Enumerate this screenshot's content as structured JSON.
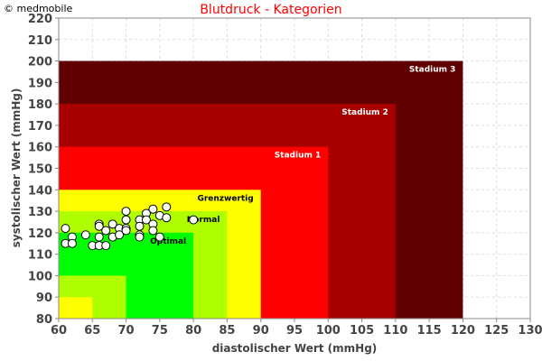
{
  "copyright": "© medmobile",
  "chart_data": {
    "type": "scatter",
    "title": "Blutdruck - Kategorien",
    "xlabel": "diastolischer Wert (mmHg)",
    "ylabel": "systolischer Wert (mmHg)",
    "xlim": [
      60,
      130
    ],
    "ylim": [
      80,
      220
    ],
    "xticks": [
      60,
      65,
      70,
      75,
      80,
      85,
      90,
      95,
      100,
      105,
      110,
      115,
      120,
      125,
      130
    ],
    "yticks": [
      80,
      90,
      100,
      110,
      120,
      130,
      140,
      150,
      160,
      170,
      180,
      190,
      200,
      210,
      220
    ],
    "grid": true,
    "zones": [
      {
        "label": "Stadium 3",
        "xmax": 120,
        "ymax": 200,
        "color": "#600000",
        "text_color": "#ffffff"
      },
      {
        "label": "Stadium 2",
        "xmax": 110,
        "ymax": 180,
        "color": "#a80000",
        "text_color": "#ffffff"
      },
      {
        "label": "Stadium 1",
        "xmax": 100,
        "ymax": 160,
        "color": "#ff0000",
        "text_color": "#ffffff"
      },
      {
        "label": "Grenzwertig",
        "xmax": 90,
        "ymax": 140,
        "color": "#ffff00",
        "text_color": "#000000"
      },
      {
        "label": "Normal",
        "xmax": 85,
        "ymax": 130,
        "color": "#b0ff00",
        "text_color": "#000000"
      },
      {
        "label": "Optimal",
        "xmax": 80,
        "ymax": 120,
        "color": "#00ff00",
        "text_color": "#000000"
      },
      {
        "label": "",
        "xmax": 70,
        "ymax": 100,
        "color": "#b0ff00",
        "text_color": "#000000"
      },
      {
        "label": "",
        "xmax": 65,
        "ymax": 90,
        "color": "#ffff00",
        "text_color": "#000000"
      }
    ],
    "points": [
      [
        61,
        122
      ],
      [
        62,
        118
      ],
      [
        61,
        115
      ],
      [
        62,
        115
      ],
      [
        64,
        119
      ],
      [
        66,
        124
      ],
      [
        66,
        123
      ],
      [
        66,
        118
      ],
      [
        65,
        114
      ],
      [
        66,
        114
      ],
      [
        67,
        114
      ],
      [
        67,
        121
      ],
      [
        68,
        124
      ],
      [
        68,
        118
      ],
      [
        69,
        122
      ],
      [
        69,
        119
      ],
      [
        70,
        130
      ],
      [
        70,
        126
      ],
      [
        70,
        122
      ],
      [
        70,
        121
      ],
      [
        72,
        126
      ],
      [
        72,
        123
      ],
      [
        72,
        119
      ],
      [
        72,
        118
      ],
      [
        73,
        129
      ],
      [
        73,
        126
      ],
      [
        74,
        131
      ],
      [
        74,
        124
      ],
      [
        74,
        121
      ],
      [
        75,
        128
      ],
      [
        76,
        132
      ],
      [
        76,
        127
      ],
      [
        75,
        118
      ],
      [
        80,
        126
      ]
    ]
  }
}
